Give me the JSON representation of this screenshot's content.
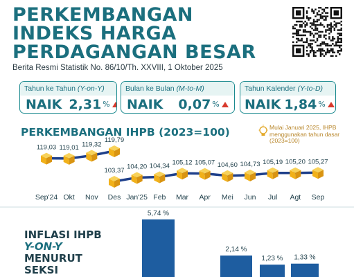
{
  "header": {
    "title_lines": [
      "PERKEMBANGAN",
      "INDEKS HARGA",
      "PERDAGANGAN BESAR"
    ],
    "subtitle": "Berita Resmi Statistik No. 86/10/Th. XXVIII, 1 Oktober 2025"
  },
  "cards": [
    {
      "label": "Tahun ke Tahun",
      "label_italic": "(Y-on-Y)",
      "status": "NAIK",
      "value": "2,31",
      "unit": "%"
    },
    {
      "label": "Bulan ke Bulan",
      "label_italic": "(M-to-M)",
      "status": "NAIK",
      "value": "0,07",
      "unit": "%"
    },
    {
      "label": "Tahun Kalender",
      "label_italic": "(Y-to-D)",
      "status": "NAIK",
      "value": "1,84",
      "unit": "%"
    }
  ],
  "colors": {
    "teal": "#1b6f7e",
    "line": "#1e3f8a",
    "cube": "#f3b81f",
    "bar": "#1e5da0",
    "up": "#d83a2d"
  },
  "chart_data": [
    {
      "type": "line",
      "title": "PERKEMBANGAN IHPB (2023=100)",
      "note": "Mulai Januari 2025, IHPB menggunakan tahun dasar (2023=100)",
      "categories": [
        "Sep'24",
        "Okt",
        "Nov",
        "Des",
        "Jan'25",
        "Feb",
        "Mar",
        "Apr",
        "Mei",
        "Jun",
        "Jul",
        "Agt",
        "Sep"
      ],
      "series": [
        {
          "values": [
            119.03,
            119.01,
            119.32,
            119.79,
            null,
            null,
            null,
            null,
            null,
            null,
            null,
            null,
            null
          ]
        },
        {
          "values": [
            null,
            null,
            null,
            103.37,
            104.2,
            104.34,
            105.12,
            105.07,
            104.6,
            104.73,
            105.19,
            105.2,
            105.27
          ]
        }
      ],
      "value_labels": [
        "119,03",
        "119,01",
        "119,32",
        "119,79",
        "103,37",
        "104,20",
        "104,34",
        "105,12",
        "105,07",
        "104,60",
        "104,73",
        "105,19",
        "105,20",
        "105,27"
      ]
    },
    {
      "type": "bar",
      "title": "INFLASI IHPB Y-ON-Y MENURUT SEKSI",
      "title_lines": [
        "INFLASI IHPB",
        "Y-ON-Y",
        "MENURUT",
        "SEKSI"
      ],
      "values": [
        5.74,
        2.14,
        1.23,
        1.33
      ],
      "labels": [
        "5,74 %",
        "2,14 %",
        "1,23 %",
        "1,33 %"
      ]
    }
  ]
}
